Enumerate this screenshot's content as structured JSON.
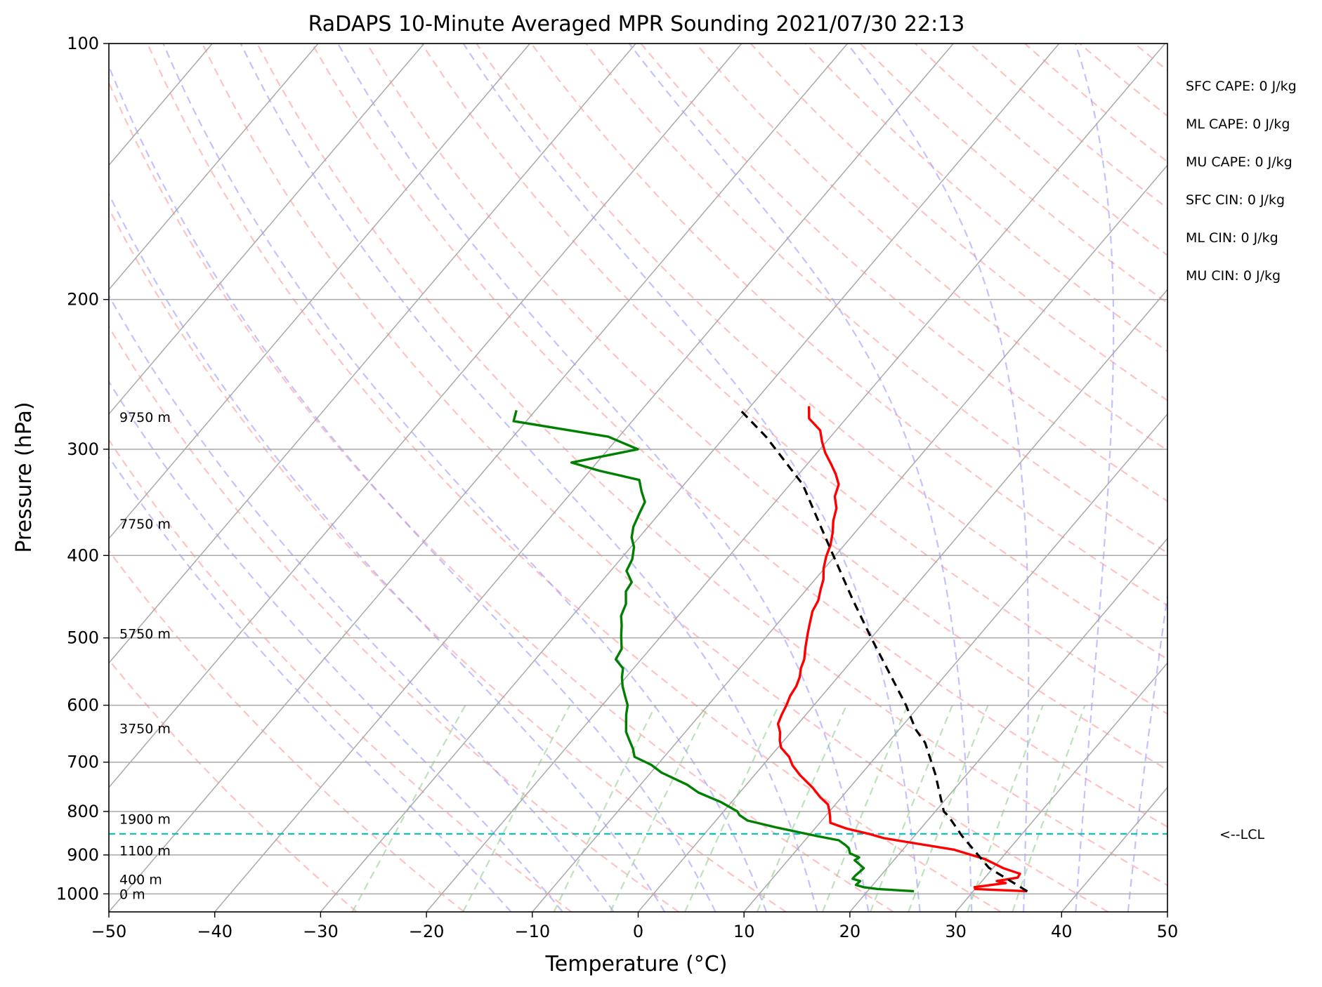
{
  "chart_data": {
    "type": "line",
    "title": "RaDAPS 10-Minute Averaged MPR Sounding 2021/07/30 22:13",
    "xlabel": "Temperature (°C)",
    "ylabel": "Pressure (hPa)",
    "xlim": [
      -50,
      50
    ],
    "ylim": [
      1050,
      100
    ],
    "y_scale": "log",
    "x_ticks": [
      "−50",
      "−40",
      "−30",
      "−20",
      "−10",
      "0",
      "10",
      "20",
      "30",
      "40",
      "50"
    ],
    "y_ticks": [
      "100",
      "200",
      "300",
      "400",
      "500",
      "600",
      "700",
      "800",
      "900",
      "1000"
    ],
    "grid": true,
    "series": [
      {
        "color": "#ff0000",
        "points": [
          [
            35.1,
            993
          ],
          [
            30.0,
            987
          ],
          [
            29.8,
            982
          ],
          [
            31.2,
            976
          ],
          [
            32.4,
            971
          ],
          [
            31.4,
            966
          ],
          [
            33.1,
            957
          ],
          [
            33.0,
            947
          ],
          [
            31.0,
            933
          ],
          [
            28.5,
            910
          ],
          [
            24.8,
            887
          ],
          [
            19.8,
            869
          ],
          [
            17.3,
            860
          ],
          [
            15.5,
            850
          ],
          [
            13.0,
            838
          ],
          [
            11.0,
            825
          ],
          [
            10.5,
            812
          ],
          [
            10.0,
            800
          ],
          [
            9.3,
            785
          ],
          [
            8.0,
            770
          ],
          [
            6.5,
            750
          ],
          [
            4.3,
            725
          ],
          [
            2.8,
            706
          ],
          [
            1.8,
            690
          ],
          [
            0.3,
            673
          ],
          [
            -0.4,
            660
          ],
          [
            -1.0,
            646
          ],
          [
            -1.9,
            631
          ],
          [
            -2.3,
            615
          ],
          [
            -2.6,
            600
          ],
          [
            -3.0,
            585
          ],
          [
            -3.2,
            570
          ],
          [
            -3.6,
            556
          ],
          [
            -4.2,
            543
          ],
          [
            -4.6,
            530
          ],
          [
            -5.5,
            512
          ],
          [
            -6.4,
            493
          ],
          [
            -7.0,
            480
          ],
          [
            -7.7,
            465
          ],
          [
            -8.0,
            452
          ],
          [
            -8.7,
            438
          ],
          [
            -9.2,
            427
          ],
          [
            -10.1,
            414
          ],
          [
            -10.8,
            401
          ],
          [
            -11.3,
            389
          ],
          [
            -12.1,
            376
          ],
          [
            -13.0,
            364
          ],
          [
            -13.7,
            352
          ],
          [
            -14.8,
            341
          ],
          [
            -15.4,
            330
          ],
          [
            -16.5,
            321
          ],
          [
            -17.8,
            312
          ],
          [
            -19.2,
            303
          ],
          [
            -20.4,
            294
          ],
          [
            -21.5,
            285
          ],
          [
            -23.5,
            276
          ],
          [
            -24.5,
            267
          ]
        ]
      },
      {
        "color": "#008000",
        "points": [
          [
            24.4,
            993
          ],
          [
            20.8,
            987
          ],
          [
            19.3,
            982
          ],
          [
            18.4,
            976
          ],
          [
            18.5,
            966
          ],
          [
            17.6,
            960
          ],
          [
            17.6,
            952
          ],
          [
            17.8,
            933
          ],
          [
            17.0,
            922
          ],
          [
            16.3,
            913
          ],
          [
            16.5,
            906
          ],
          [
            15.3,
            896
          ],
          [
            14.8,
            884
          ],
          [
            14.2,
            876
          ],
          [
            13.2,
            865
          ],
          [
            11.0,
            856
          ],
          [
            6.4,
            836
          ],
          [
            3.0,
            820
          ],
          [
            1.8,
            808
          ],
          [
            1.3,
            800
          ],
          [
            -1.0,
            780
          ],
          [
            -3.9,
            760
          ],
          [
            -5.6,
            744
          ],
          [
            -9.0,
            720
          ],
          [
            -10.6,
            705
          ],
          [
            -12.8,
            690
          ],
          [
            -13.6,
            675
          ],
          [
            -14.6,
            660
          ],
          [
            -15.6,
            645
          ],
          [
            -16.3,
            630
          ],
          [
            -17.0,
            615
          ],
          [
            -17.6,
            600
          ],
          [
            -18.6,
            585
          ],
          [
            -19.6,
            570
          ],
          [
            -20.4,
            556
          ],
          [
            -21.0,
            543
          ],
          [
            -22.4,
            530
          ],
          [
            -22.7,
            515
          ],
          [
            -23.8,
            497
          ],
          [
            -24.6,
            483
          ],
          [
            -25.4,
            471
          ],
          [
            -25.9,
            456
          ],
          [
            -26.9,
            441
          ],
          [
            -27.1,
            430
          ],
          [
            -28.5,
            417
          ],
          [
            -28.9,
            404
          ],
          [
            -29.7,
            391
          ],
          [
            -30.7,
            381
          ],
          [
            -31.4,
            370
          ],
          [
            -31.9,
            357
          ],
          [
            -32.3,
            346
          ],
          [
            -33.5,
            336
          ],
          [
            -34.6,
            326
          ],
          [
            -39.1,
            318
          ],
          [
            -42.4,
            311
          ],
          [
            -37.2,
            300
          ],
          [
            -41.0,
            290
          ],
          [
            -51.2,
            278
          ],
          [
            -51.8,
            270
          ]
        ]
      },
      {
        "color": "#000000",
        "style": "dashed",
        "points": [
          [
            35.1,
            993
          ],
          [
            29.6,
            932
          ],
          [
            24.5,
            855
          ],
          [
            21.6,
            810
          ],
          [
            20.8,
            800
          ],
          [
            17.0,
            723
          ],
          [
            13.5,
            664
          ],
          [
            11.5,
            640
          ],
          [
            8.7,
            600
          ],
          [
            0.0,
            500
          ],
          [
            -4.9,
            450
          ],
          [
            -10.2,
            400
          ],
          [
            -13.7,
            370
          ],
          [
            -18.8,
            330
          ],
          [
            -26.1,
            290
          ],
          [
            -31.1,
            268
          ]
        ]
      }
    ],
    "lcl_hpa": 850,
    "lcl_label": "<--LCL",
    "lcl_color": "#00bfbf",
    "height_labels": [
      {
        "text": "9750 m",
        "p": 275
      },
      {
        "text": "7750 m",
        "p": 367
      },
      {
        "text": "5750 m",
        "p": 494
      },
      {
        "text": "3750 m",
        "p": 639
      },
      {
        "text": "1900 m",
        "p": 816
      },
      {
        "text": "1100 m",
        "p": 889
      },
      {
        "text": "400 m",
        "p": 961
      },
      {
        "text": "0 m",
        "p": 1000
      }
    ],
    "indices": [
      "SFC CAPE: 0 J/kg",
      "ML CAPE: 0 J/kg",
      "MU CAPE: 0 J/kg",
      "SFC CIN: 0 J/kg",
      "ML CIN: 0 J/kg",
      "MU CIN: 0 J/kg"
    ],
    "colors": {
      "isotherm": "#a9a9a9",
      "dry_adiabat": "#ff9a9a",
      "moist_adiabat": "#9a9aff",
      "mixing_ratio": "#8fcf8f",
      "isobar": "#a9a9a9"
    }
  }
}
